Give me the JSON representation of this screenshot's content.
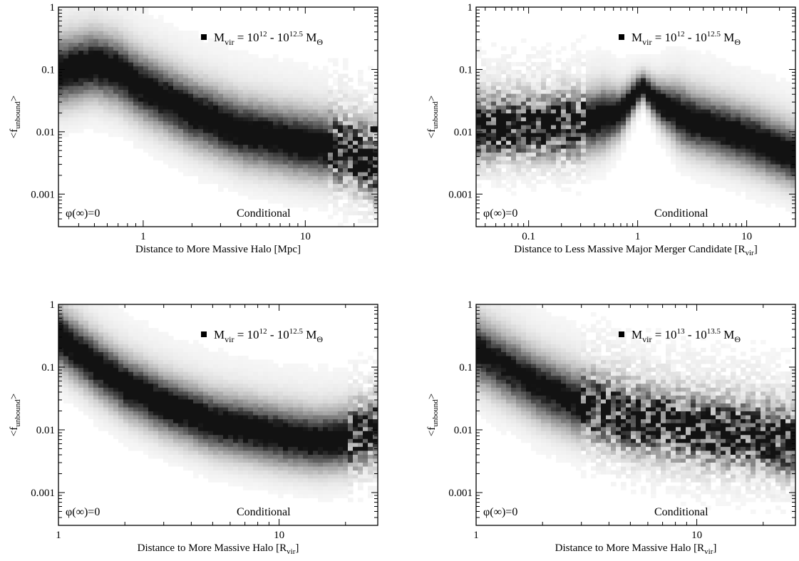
{
  "chart_data": [
    {
      "type": "heatmap",
      "xscale": "log",
      "yscale": "log",
      "xlim": [
        0.3,
        28
      ],
      "ylim": [
        0.0003,
        1
      ],
      "xticks": [
        {
          "v": 1,
          "label": "1"
        },
        {
          "v": 10,
          "label": "10"
        }
      ],
      "yticks": [
        {
          "v": 0.001,
          "label": "0.001"
        },
        {
          "v": 0.01,
          "label": "0.01"
        },
        {
          "v": 0.1,
          "label": "0.1"
        },
        {
          "v": 1,
          "label": "1"
        }
      ],
      "xlabel_main": "Distance to More Massive Halo [Mpc]",
      "xlabel_sub": "",
      "xlabel_tail": "",
      "ylabel_main": "<f",
      "ylabel_sub": "unbound",
      "ylabel_tail": ">",
      "legend": {
        "pre": "M",
        "pre_sub": "vir",
        "mid": " = 10",
        "e1": "12",
        "mid2": " - 10",
        "e2": "12.5",
        "post": " M",
        "post_sub": "Θ"
      },
      "annotation_left": "φ(∞)=0",
      "annotation_right": "Conditional",
      "ridge": [
        [
          0.3,
          0.09
        ],
        [
          0.5,
          0.12
        ],
        [
          0.7,
          0.09
        ],
        [
          1.0,
          0.05
        ],
        [
          2.0,
          0.02
        ],
        [
          4.0,
          0.01
        ],
        [
          8.0,
          0.007
        ],
        [
          12.0,
          0.006
        ],
        [
          18.0,
          0.005
        ],
        [
          22.0,
          0.004
        ],
        [
          28.0,
          0.003
        ]
      ],
      "spread": 0.55,
      "noise_from": 14,
      "band_peak": 1.0,
      "markers": [
        [
          26.5,
          0.011
        ],
        [
          26.5,
          0.0024
        ]
      ]
    },
    {
      "type": "heatmap",
      "xscale": "log",
      "yscale": "log",
      "xlim": [
        0.033,
        28
      ],
      "ylim": [
        0.0003,
        1
      ],
      "xticks": [
        {
          "v": 0.1,
          "label": "0.1"
        },
        {
          "v": 1,
          "label": "1"
        },
        {
          "v": 10,
          "label": "10"
        }
      ],
      "yticks": [
        {
          "v": 0.001,
          "label": "0.001"
        },
        {
          "v": 0.01,
          "label": "0.01"
        },
        {
          "v": 0.1,
          "label": "0.1"
        },
        {
          "v": 1,
          "label": "1"
        }
      ],
      "xlabel_main": "Distance to Less Massive Major Merger Candidate [R",
      "xlabel_sub": "vir",
      "xlabel_tail": "]",
      "ylabel_main": "<f",
      "ylabel_sub": "unbound",
      "ylabel_tail": ">",
      "legend": {
        "pre": "M",
        "pre_sub": "vir",
        "mid": " = 10",
        "e1": "12",
        "mid2": " - 10",
        "e2": "12.5",
        "post": " M",
        "post_sub": "Θ"
      },
      "annotation_left": "φ(∞)=0",
      "annotation_right": "Conditional",
      "ridge": [
        [
          0.033,
          0.012
        ],
        [
          0.1,
          0.012
        ],
        [
          0.3,
          0.013
        ],
        [
          0.7,
          0.02
        ],
        [
          1.1,
          0.055
        ],
        [
          1.5,
          0.03
        ],
        [
          3.0,
          0.015
        ],
        [
          10.0,
          0.008
        ],
        [
          28.0,
          0.004
        ]
      ],
      "spread": 0.5,
      "noise_to": 0.35,
      "notch_at": 1.1,
      "band_peak": 1.0,
      "markers": []
    },
    {
      "type": "heatmap",
      "xscale": "log",
      "yscale": "log",
      "xlim": [
        1,
        28
      ],
      "ylim": [
        0.0003,
        1
      ],
      "xticks": [
        {
          "v": 1,
          "label": "1"
        },
        {
          "v": 10,
          "label": "10"
        }
      ],
      "yticks": [
        {
          "v": 0.001,
          "label": "0.001"
        },
        {
          "v": 0.01,
          "label": "0.01"
        },
        {
          "v": 0.1,
          "label": "0.1"
        },
        {
          "v": 1,
          "label": "1"
        }
      ],
      "xlabel_main": "Distance to More Massive Halo [R",
      "xlabel_sub": "vir",
      "xlabel_tail": "]",
      "ylabel_main": "<f",
      "ylabel_sub": "unbound",
      "ylabel_tail": ">",
      "legend": {
        "pre": "M",
        "pre_sub": "vir",
        "mid": " = 10",
        "e1": "12",
        "mid2": " - 10",
        "e2": "12.5",
        "post": " M",
        "post_sub": "Θ"
      },
      "annotation_left": "φ(∞)=0",
      "annotation_right": "Conditional",
      "ridge": [
        [
          1,
          0.3
        ],
        [
          1.5,
          0.1
        ],
        [
          2.0,
          0.05
        ],
        [
          3.0,
          0.025
        ],
        [
          5.0,
          0.013
        ],
        [
          10.0,
          0.008
        ],
        [
          15.0,
          0.0065
        ],
        [
          20.0,
          0.007
        ],
        [
          28.0,
          0.01
        ]
      ],
      "spread": 0.5,
      "noise_from": 20,
      "band_peak": 1.0,
      "markers": []
    },
    {
      "type": "heatmap",
      "xscale": "log",
      "yscale": "log",
      "xlim": [
        1,
        28
      ],
      "ylim": [
        0.0003,
        1
      ],
      "xticks": [
        {
          "v": 1,
          "label": "1"
        },
        {
          "v": 10,
          "label": "10"
        }
      ],
      "yticks": [
        {
          "v": 0.001,
          "label": "0.001"
        },
        {
          "v": 0.01,
          "label": "0.01"
        },
        {
          "v": 0.1,
          "label": "0.1"
        },
        {
          "v": 1,
          "label": "1"
        }
      ],
      "xlabel_main": "Distance to More Massive Halo [R",
      "xlabel_sub": "vir",
      "xlabel_tail": "]",
      "ylabel_main": "<f",
      "ylabel_sub": "unbound",
      "ylabel_tail": ">",
      "legend": {
        "pre": "M",
        "pre_sub": "vir",
        "mid": " = 10",
        "e1": "13",
        "mid2": " - 10",
        "e2": "13.5",
        "post": " M",
        "post_sub": "Θ"
      },
      "annotation_left": "φ(∞)=0",
      "annotation_right": "Conditional",
      "ridge": [
        [
          1,
          0.18
        ],
        [
          1.5,
          0.08
        ],
        [
          2.0,
          0.045
        ],
        [
          3.0,
          0.025
        ],
        [
          5.0,
          0.015
        ],
        [
          10.0,
          0.01
        ],
        [
          20.0,
          0.008
        ],
        [
          28.0,
          0.006
        ]
      ],
      "spread": 0.55,
      "noise_from": 3,
      "band_peak": 0.9,
      "markers": []
    }
  ]
}
